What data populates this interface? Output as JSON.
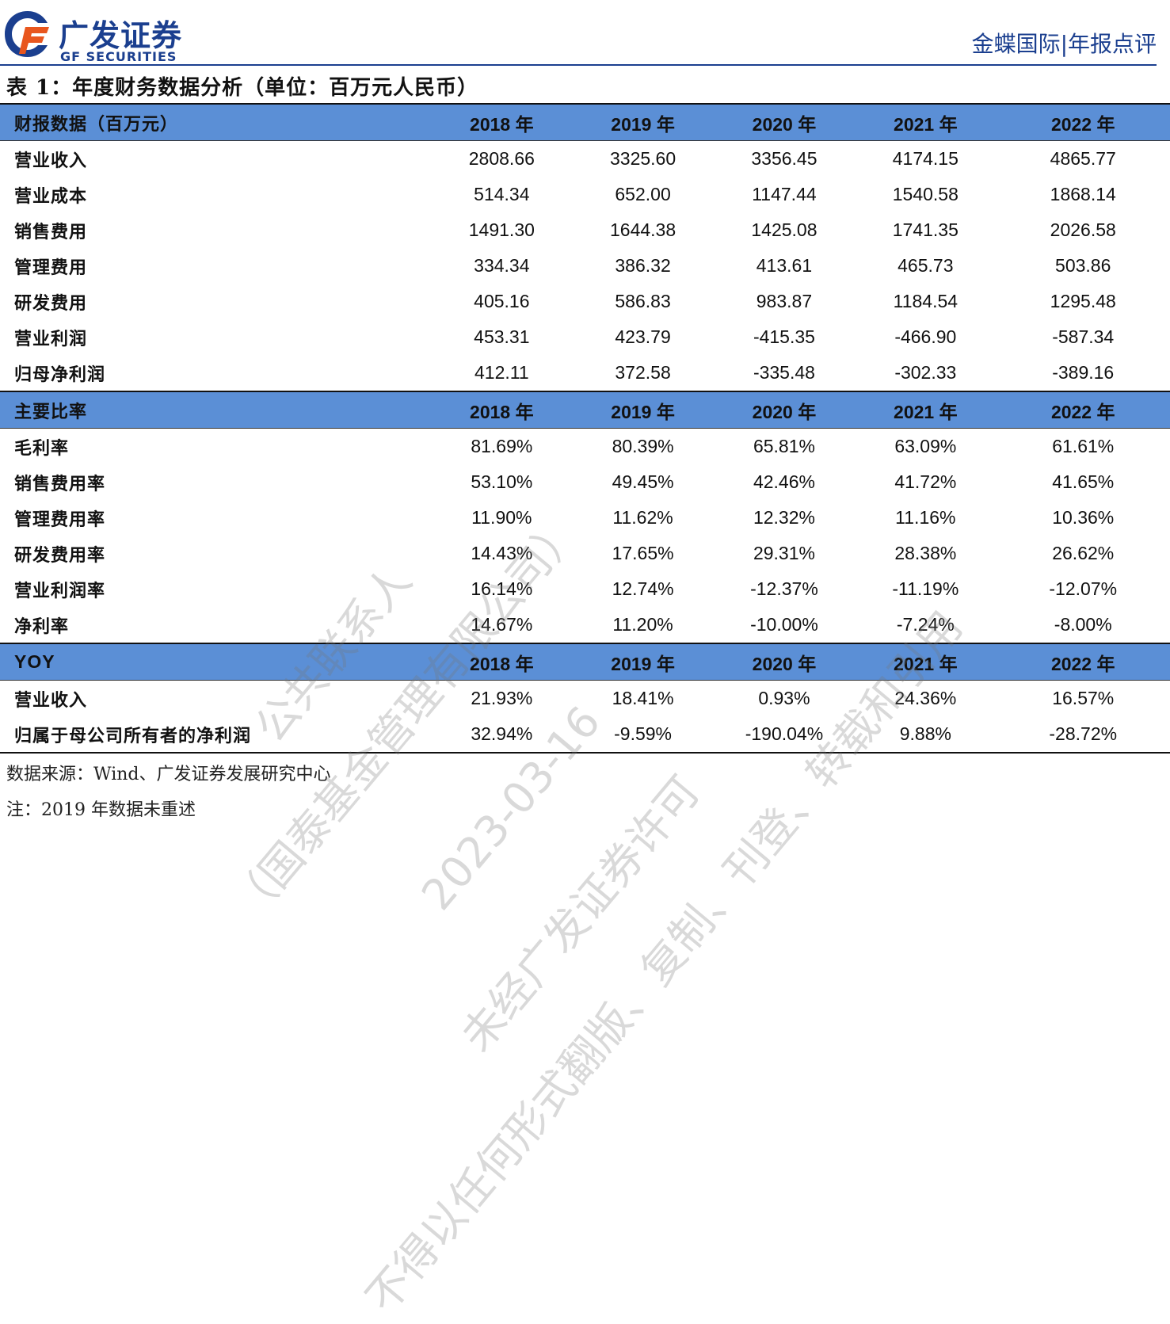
{
  "header": {
    "logo_cn": "广发证券",
    "logo_en": "GF SECURITIES",
    "report_label": "金蝶国际|年报点评"
  },
  "table_title": "表 1：年度财务数据分析（单位：百万元人民币）",
  "years": [
    "2018 年",
    "2019 年",
    "2020 年",
    "2021 年",
    "2022 年"
  ],
  "sections": [
    {
      "header_label": "财报数据（百万元）",
      "rows": [
        {
          "label": "营业收入",
          "values": [
            "2808.66",
            "3325.60",
            "3356.45",
            "4174.15",
            "4865.77"
          ]
        },
        {
          "label": "营业成本",
          "values": [
            "514.34",
            "652.00",
            "1147.44",
            "1540.58",
            "1868.14"
          ]
        },
        {
          "label": "销售费用",
          "values": [
            "1491.30",
            "1644.38",
            "1425.08",
            "1741.35",
            "2026.58"
          ]
        },
        {
          "label": "管理费用",
          "values": [
            "334.34",
            "386.32",
            "413.61",
            "465.73",
            "503.86"
          ]
        },
        {
          "label": "研发费用",
          "values": [
            "405.16",
            "586.83",
            "983.87",
            "1184.54",
            "1295.48"
          ]
        },
        {
          "label": "营业利润",
          "values": [
            "453.31",
            "423.79",
            "-415.35",
            "-466.90",
            "-587.34"
          ]
        },
        {
          "label": "归母净利润",
          "values": [
            "412.11",
            "372.58",
            "-335.48",
            "-302.33",
            "-389.16"
          ]
        }
      ]
    },
    {
      "header_label": "主要比率",
      "rows": [
        {
          "label": "毛利率",
          "values": [
            "81.69%",
            "80.39%",
            "65.81%",
            "63.09%",
            "61.61%"
          ]
        },
        {
          "label": "销售费用率",
          "values": [
            "53.10%",
            "49.45%",
            "42.46%",
            "41.72%",
            "41.65%"
          ]
        },
        {
          "label": "管理费用率",
          "values": [
            "11.90%",
            "11.62%",
            "12.32%",
            "11.16%",
            "10.36%"
          ]
        },
        {
          "label": "研发费用率",
          "values": [
            "14.43%",
            "17.65%",
            "29.31%",
            "28.38%",
            "26.62%"
          ]
        },
        {
          "label": "营业利润率",
          "values": [
            "16.14%",
            "12.74%",
            "-12.37%",
            "-11.19%",
            "-12.07%"
          ]
        },
        {
          "label": "净利率",
          "values": [
            "14.67%",
            "11.20%",
            "-10.00%",
            "-7.24%",
            "-8.00%"
          ]
        }
      ]
    },
    {
      "header_label": "YOY",
      "rows": [
        {
          "label": "营业收入",
          "values": [
            "21.93%",
            "18.41%",
            "0.93%",
            "24.36%",
            "16.57%"
          ]
        },
        {
          "label": "归属于母公司所有者的净利润",
          "values": [
            "32.94%",
            "-9.59%",
            "-190.04%",
            "9.88%",
            "-28.72%"
          ]
        }
      ]
    }
  ],
  "notes": {
    "source": "数据来源：Wind、广发证券发展研究中心",
    "note": "注：2019 年数据未重述"
  },
  "watermark": {
    "line1": "（国泰基金管理有限公司）",
    "line2": "仅供内部员工参考使用，不得以任何形式翻版、复制、刊登、转载和引用",
    "line3": "2023-03-16",
    "line4": "未经广发证券许可",
    "line5": "公共联系人",
    "line6": "不得以任何形式翻版、复制、刊登、转载和引用"
  },
  "colors": {
    "brand_blue": "#1b3f8f",
    "logo_orange": "#e8561e",
    "section_header_bg": "#5b8fd6"
  }
}
